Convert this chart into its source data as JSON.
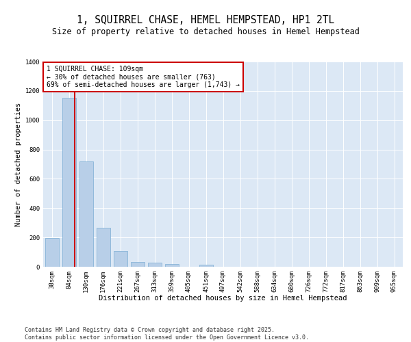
{
  "title": "1, SQUIRREL CHASE, HEMEL HEMPSTEAD, HP1 2TL",
  "subtitle": "Size of property relative to detached houses in Hemel Hempstead",
  "xlabel": "Distribution of detached houses by size in Hemel Hempstead",
  "ylabel": "Number of detached properties",
  "categories": [
    "38sqm",
    "84sqm",
    "130sqm",
    "176sqm",
    "221sqm",
    "267sqm",
    "313sqm",
    "359sqm",
    "405sqm",
    "451sqm",
    "497sqm",
    "542sqm",
    "588sqm",
    "634sqm",
    "680sqm",
    "726sqm",
    "772sqm",
    "817sqm",
    "863sqm",
    "909sqm",
    "955sqm"
  ],
  "values": [
    197,
    1155,
    718,
    265,
    108,
    33,
    27,
    20,
    0,
    15,
    0,
    0,
    0,
    0,
    0,
    0,
    0,
    0,
    0,
    0,
    0
  ],
  "bar_color": "#b8cfe8",
  "bar_edge_color": "#7aadd4",
  "vline_color": "#cc0000",
  "vline_x": 1.35,
  "annotation_text": "1 SQUIRREL CHASE: 109sqm\n← 30% of detached houses are smaller (763)\n69% of semi-detached houses are larger (1,743) →",
  "annotation_box_color": "#cc0000",
  "ylim": [
    0,
    1400
  ],
  "yticks": [
    0,
    200,
    400,
    600,
    800,
    1000,
    1200,
    1400
  ],
  "background_color": "#dce8f5",
  "footer_text": "Contains HM Land Registry data © Crown copyright and database right 2025.\nContains public sector information licensed under the Open Government Licence v3.0.",
  "title_fontsize": 10.5,
  "subtitle_fontsize": 8.5,
  "axis_label_fontsize": 7.5,
  "tick_fontsize": 6.5,
  "annotation_fontsize": 7,
  "footer_fontsize": 6
}
